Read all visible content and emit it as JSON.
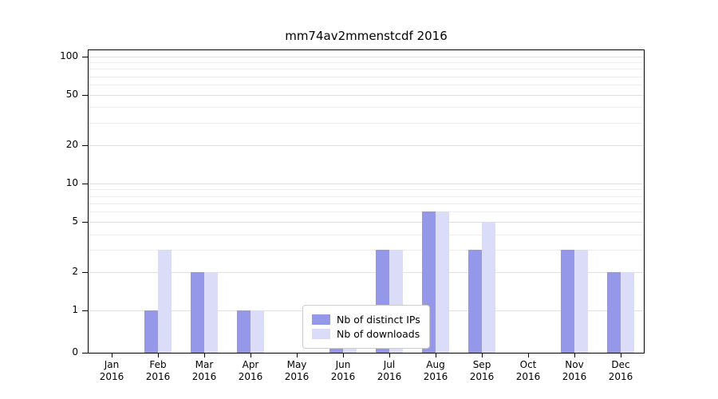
{
  "chart_data": {
    "type": "bar",
    "title": "mm74av2mmenstcdf 2016",
    "categories": [
      "Jan 2016",
      "Feb 2016",
      "Mar 2016",
      "Apr 2016",
      "May 2016",
      "Jun 2016",
      "Jul 2016",
      "Aug 2016",
      "Sep 2016",
      "Oct 2016",
      "Nov 2016",
      "Dec 2016"
    ],
    "series": [
      {
        "name": "Nb of distinct IPs",
        "color": "#9597e9",
        "values": [
          0,
          1,
          2,
          1,
          0,
          1,
          3,
          6,
          3,
          0,
          3,
          2
        ]
      },
      {
        "name": "Nb of downloads",
        "color": "#dadcf8",
        "values": [
          0,
          3,
          2,
          1,
          0,
          1,
          3,
          6,
          5,
          0,
          3,
          2
        ]
      }
    ],
    "yscale": "symlog",
    "yticks": [
      0,
      1,
      2,
      5,
      10,
      20,
      50,
      100
    ],
    "minor_yticks": [
      3,
      4,
      6,
      7,
      8,
      9,
      30,
      40,
      60,
      70,
      80,
      90
    ],
    "ylim": [
      0,
      110
    ],
    "grid": true,
    "legend_position": "lower-center-inside"
  },
  "colors": {
    "background": "#ffffff",
    "axis": "#000000",
    "grid_major": "#e0e0e0",
    "grid_minor": "#ededed",
    "legend_border": "#cccccc"
  }
}
